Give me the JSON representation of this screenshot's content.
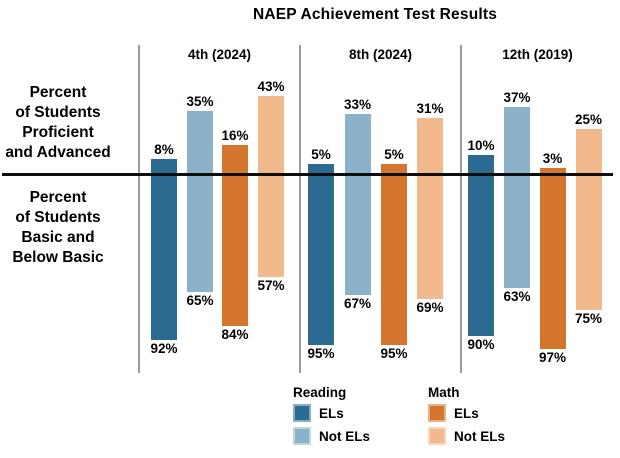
{
  "chart_data": {
    "type": "bar",
    "title": "NAEP Achievement Test Results",
    "value_suffix": "%",
    "left_labels": {
      "top": "Percent\nof Students\nProficient\nand Advanced",
      "bottom": "Percent\nof Students\nBasic and\nBelow Basic"
    },
    "axis_layout": {
      "above_meaning": "Percent of Students Proficient and Advanced",
      "below_meaning": "Percent of Students Basic and Below Basic",
      "grid": "off",
      "ylim_above": [
        0,
        43
      ],
      "ylim_below": [
        0,
        97
      ]
    },
    "series": [
      {
        "key": "reading-els",
        "name": "Reading ELs",
        "color": "#2B6A91"
      },
      {
        "key": "reading-not-els",
        "name": "Reading Not ELs",
        "color": "#8BB2C9"
      },
      {
        "key": "math-els",
        "name": "Math ELs",
        "color": "#D4752D"
      },
      {
        "key": "math-not-els",
        "name": "Math Not ELs",
        "color": "#F2BA8C"
      }
    ],
    "groups": [
      {
        "label": "4th (2024)",
        "above": [
          8,
          35,
          16,
          43
        ],
        "below": [
          92,
          65,
          84,
          57
        ]
      },
      {
        "label": "8th (2024)",
        "above": [
          5,
          33,
          5,
          31
        ],
        "below": [
          95,
          67,
          95,
          69
        ]
      },
      {
        "label": "12th (2019)",
        "above": [
          10,
          37,
          3,
          25
        ],
        "below": [
          90,
          63,
          97,
          75
        ]
      }
    ],
    "legend": {
      "position": "bottom",
      "columns": [
        {
          "title": "Reading",
          "items": [
            {
              "label": "ELs",
              "color": "#2B6A91"
            },
            {
              "label": "Not ELs",
              "color": "#8BB2C9"
            }
          ]
        },
        {
          "title": "Math",
          "items": [
            {
              "label": "ELs",
              "color": "#D4752D"
            },
            {
              "label": "Not ELs",
              "color": "#F2BA8C"
            }
          ]
        }
      ]
    }
  }
}
